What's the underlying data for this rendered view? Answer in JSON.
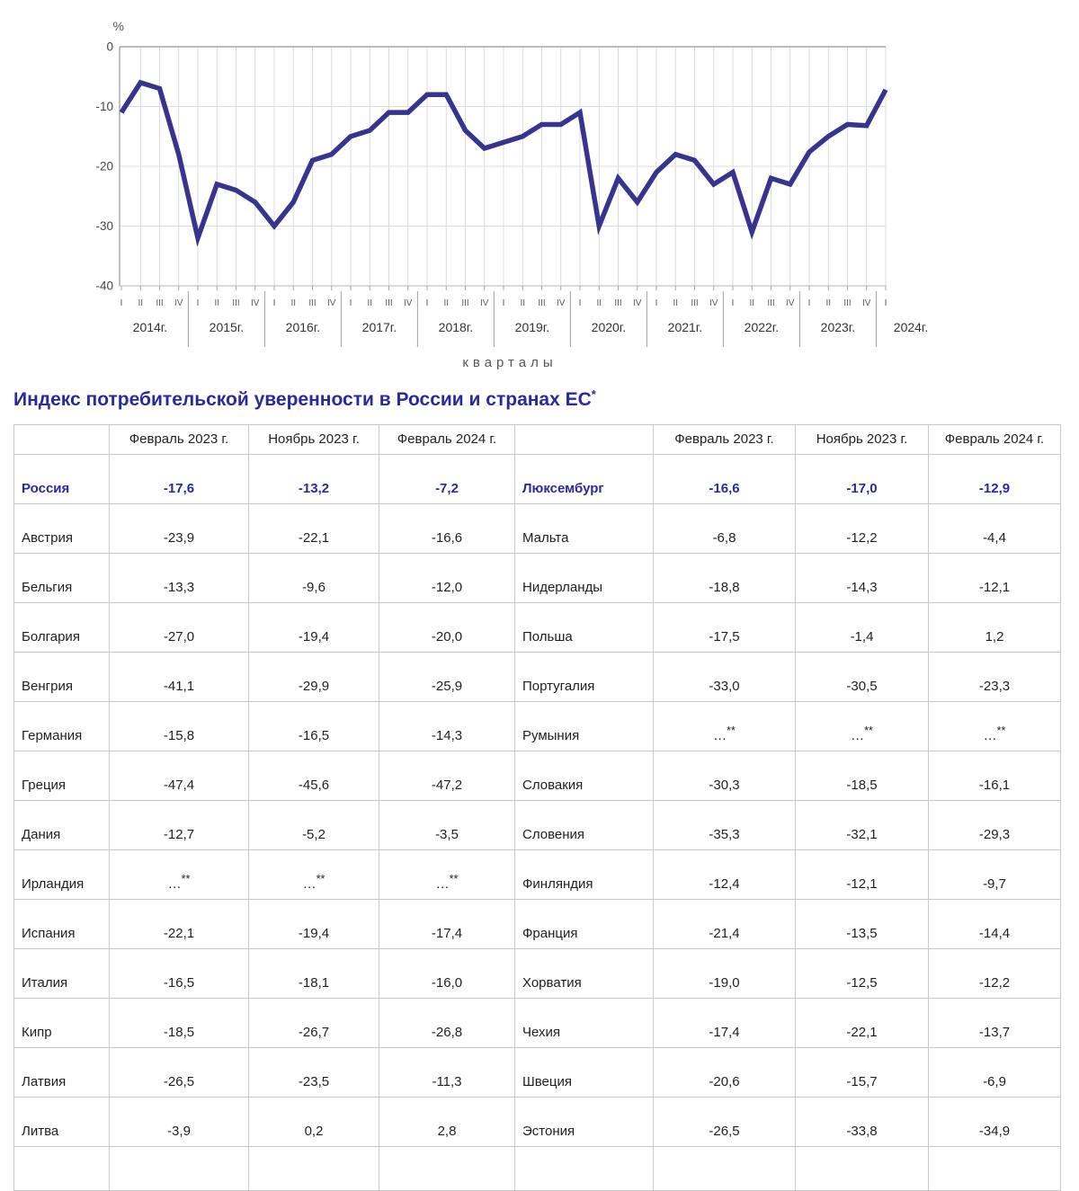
{
  "title": {
    "text": "Индекс потребительской уверенности в России и странах ЕС",
    "sup": "*"
  },
  "chart_data": {
    "type": "line",
    "series_label": "Индекс потребительской уверенности, %",
    "ylabel": "%",
    "xlabel": "кварталы",
    "ylim": [
      -40,
      0
    ],
    "yticks": [
      0,
      -10,
      -20,
      -30,
      -40
    ],
    "grid": true,
    "line_color": "#37338e",
    "years": [
      {
        "label": "2014г.",
        "quarters": [
          "I",
          "II",
          "III",
          "IV"
        ],
        "values": [
          -11,
          -6,
          -7,
          -18
        ]
      },
      {
        "label": "2015г.",
        "quarters": [
          "I",
          "II",
          "III",
          "IV"
        ],
        "values": [
          -32,
          -23,
          -24,
          -26
        ]
      },
      {
        "label": "2016г.",
        "quarters": [
          "I",
          "II",
          "III",
          "IV"
        ],
        "values": [
          -30,
          -26,
          -19,
          -18
        ]
      },
      {
        "label": "2017г.",
        "quarters": [
          "I",
          "II",
          "III",
          "IV"
        ],
        "values": [
          -15,
          -14,
          -11,
          -11
        ]
      },
      {
        "label": "2018г.",
        "quarters": [
          "I",
          "II",
          "III",
          "IV"
        ],
        "values": [
          -8,
          -8,
          -14,
          -17
        ]
      },
      {
        "label": "2019г.",
        "quarters": [
          "I",
          "II",
          "III",
          "IV"
        ],
        "values": [
          -16,
          -15,
          -13,
          -13
        ]
      },
      {
        "label": "2020г.",
        "quarters": [
          "I",
          "II",
          "III",
          "IV"
        ],
        "values": [
          -11,
          -30,
          -22,
          -26
        ]
      },
      {
        "label": "2021г.",
        "quarters": [
          "I",
          "II",
          "III",
          "IV"
        ],
        "values": [
          -21,
          -18,
          -19,
          -23
        ]
      },
      {
        "label": "2022г.",
        "quarters": [
          "I",
          "II",
          "III",
          "IV"
        ],
        "values": [
          -21,
          -31,
          -22,
          -23
        ]
      },
      {
        "label": "2023г.",
        "quarters": [
          "I",
          "II",
          "III",
          "IV"
        ],
        "values": [
          -17.6,
          -15,
          -13,
          -13.2
        ]
      },
      {
        "label": "2024г.",
        "quarters": [
          "I"
        ],
        "values": [
          -7.2
        ]
      }
    ]
  },
  "table": {
    "col_headers": [
      "Февраль 2023 г.",
      "Ноябрь 2023 г.",
      "Февраль 2024 г."
    ],
    "left_rows": [
      {
        "country": "Россия",
        "highlight": true,
        "values": [
          "-17,6",
          "-13,2",
          "-7,2"
        ]
      },
      {
        "country": "Австрия",
        "highlight": false,
        "values": [
          "-23,9",
          "-22,1",
          "-16,6"
        ]
      },
      {
        "country": "Бельгия",
        "highlight": false,
        "values": [
          "-13,3",
          "-9,6",
          "-12,0"
        ]
      },
      {
        "country": "Болгария",
        "highlight": false,
        "values": [
          "-27,0",
          "-19,4",
          "-20,0"
        ]
      },
      {
        "country": "Венгрия",
        "highlight": false,
        "values": [
          "-41,1",
          "-29,9",
          "-25,9"
        ]
      },
      {
        "country": "Германия",
        "highlight": false,
        "values": [
          "-15,8",
          "-16,5",
          "-14,3"
        ]
      },
      {
        "country": "Греция",
        "highlight": false,
        "values": [
          "-47,4",
          "-45,6",
          "-47,2"
        ]
      },
      {
        "country": "Дания",
        "highlight": false,
        "values": [
          "-12,7",
          "-5,2",
          "-3,5"
        ]
      },
      {
        "country": "Ирландия",
        "highlight": false,
        "values": [
          "…**",
          "…**",
          "…**"
        ]
      },
      {
        "country": "Испания",
        "highlight": false,
        "values": [
          "-22,1",
          "-19,4",
          "-17,4"
        ]
      },
      {
        "country": "Италия",
        "highlight": false,
        "values": [
          "-16,5",
          "-18,1",
          "-16,0"
        ]
      },
      {
        "country": "Кипр",
        "highlight": false,
        "values": [
          "-18,5",
          "-26,7",
          "-26,8"
        ]
      },
      {
        "country": "Латвия",
        "highlight": false,
        "values": [
          "-26,5",
          "-23,5",
          "-11,3"
        ]
      },
      {
        "country": "Литва",
        "highlight": false,
        "values": [
          "-3,9",
          "0,2",
          "2,8"
        ]
      }
    ],
    "right_rows": [
      {
        "country": "Люксембург",
        "highlight": false,
        "values": [
          "-16,6",
          "-17,0",
          "-12,9"
        ]
      },
      {
        "country": "Мальта",
        "highlight": false,
        "values": [
          "-6,8",
          "-12,2",
          "-4,4"
        ]
      },
      {
        "country": "Нидерланды",
        "highlight": false,
        "values": [
          "-18,8",
          "-14,3",
          "-12,1"
        ]
      },
      {
        "country": "Польша",
        "highlight": false,
        "values": [
          "-17,5",
          "-1,4",
          "1,2"
        ]
      },
      {
        "country": "Португалия",
        "highlight": false,
        "values": [
          "-33,0",
          "-30,5",
          "-23,3"
        ]
      },
      {
        "country": "Румыния",
        "highlight": false,
        "values": [
          "…**",
          "…**",
          "…**"
        ]
      },
      {
        "country": "Словакия",
        "highlight": false,
        "values": [
          "-30,3",
          "-18,5",
          "-16,1"
        ]
      },
      {
        "country": "Словения",
        "highlight": false,
        "values": [
          "-35,3",
          "-32,1",
          "-29,3"
        ]
      },
      {
        "country": "Финляндия",
        "highlight": false,
        "values": [
          "-12,4",
          "-12,1",
          "-9,7"
        ]
      },
      {
        "country": "Франция",
        "highlight": false,
        "values": [
          "-21,4",
          "-13,5",
          "-14,4"
        ]
      },
      {
        "country": "Хорватия",
        "highlight": false,
        "values": [
          "-19,0",
          "-12,5",
          "-12,2"
        ]
      },
      {
        "country": "Чехия",
        "highlight": false,
        "values": [
          "-17,4",
          "-22,1",
          "-13,7"
        ]
      },
      {
        "country": "Швеция",
        "highlight": false,
        "values": [
          "-20,6",
          "-15,7",
          "-6,9"
        ]
      },
      {
        "country": "Эстония",
        "highlight": false,
        "values": [
          "-26,5",
          "-33,8",
          "-34,9"
        ]
      }
    ]
  }
}
